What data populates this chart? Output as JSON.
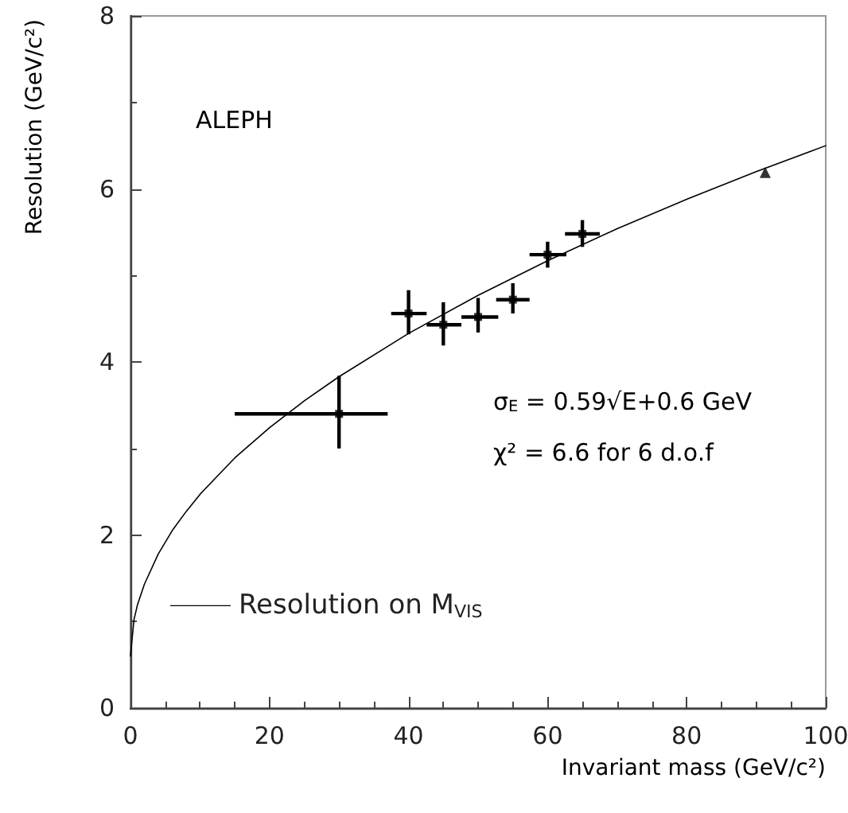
{
  "chart_data": {
    "type": "scatter",
    "xlabel": "Invariant mass (GeV/c²)",
    "ylabel": "Resolution (GeV/c²)",
    "xlim": [
      0,
      100
    ],
    "xticks": [
      0,
      20,
      40,
      60,
      80,
      100
    ],
    "ylim": [
      0,
      8
    ],
    "yticks": [
      0,
      2,
      4,
      6,
      8
    ],
    "grid": false,
    "legend": "bottom left",
    "annotations": [
      "ALEPH",
      "σ$_{E}$ = 0.59√E+0.6 GeV",
      "χ² = 6.6 for 6 d.o.f"
    ],
    "series": [
      {
        "type": "scatter",
        "marker": "square",
        "color": "#000000",
        "x": [
          30,
          40,
          45,
          50,
          55,
          60,
          65
        ],
        "values": [
          3.4,
          4.56,
          4.43,
          4.52,
          4.72,
          5.24,
          5.48
        ],
        "errors": [
          [
            3.0,
            3.84
          ],
          [
            4.32,
            4.83
          ],
          [
            4.19,
            4.69
          ],
          [
            4.34,
            4.74
          ],
          [
            4.56,
            4.91
          ],
          [
            5.09,
            5.39
          ],
          [
            5.33,
            5.64
          ]
        ],
        "xerrors": [
          [
            15,
            37
          ],
          [
            37.5,
            42.6
          ],
          [
            42.6,
            47.6
          ],
          [
            47.6,
            52.9
          ],
          [
            52.6,
            57.4
          ],
          [
            57.4,
            62.7
          ],
          [
            62.5,
            67.5
          ]
        ]
      },
      {
        "type": "scatter",
        "marker": "triangle",
        "color": "#000000",
        "x": [
          91.3
        ],
        "values": [
          6.19
        ]
      },
      {
        "type": "line",
        "marker": "none",
        "name": "Resolution on M$_{VIS}$",
        "color": "#000000",
        "x": [
          0,
          0.5,
          1,
          2,
          4,
          6,
          8,
          10,
          15,
          20,
          25,
          30,
          40,
          50,
          60,
          70,
          80,
          90,
          100
        ],
        "values": [
          0.6,
          1.02,
          1.19,
          1.43,
          1.78,
          2.05,
          2.27,
          2.47,
          2.89,
          3.24,
          3.55,
          3.83,
          4.33,
          4.77,
          5.17,
          5.54,
          5.88,
          6.2,
          6.5
        ]
      }
    ]
  }
}
